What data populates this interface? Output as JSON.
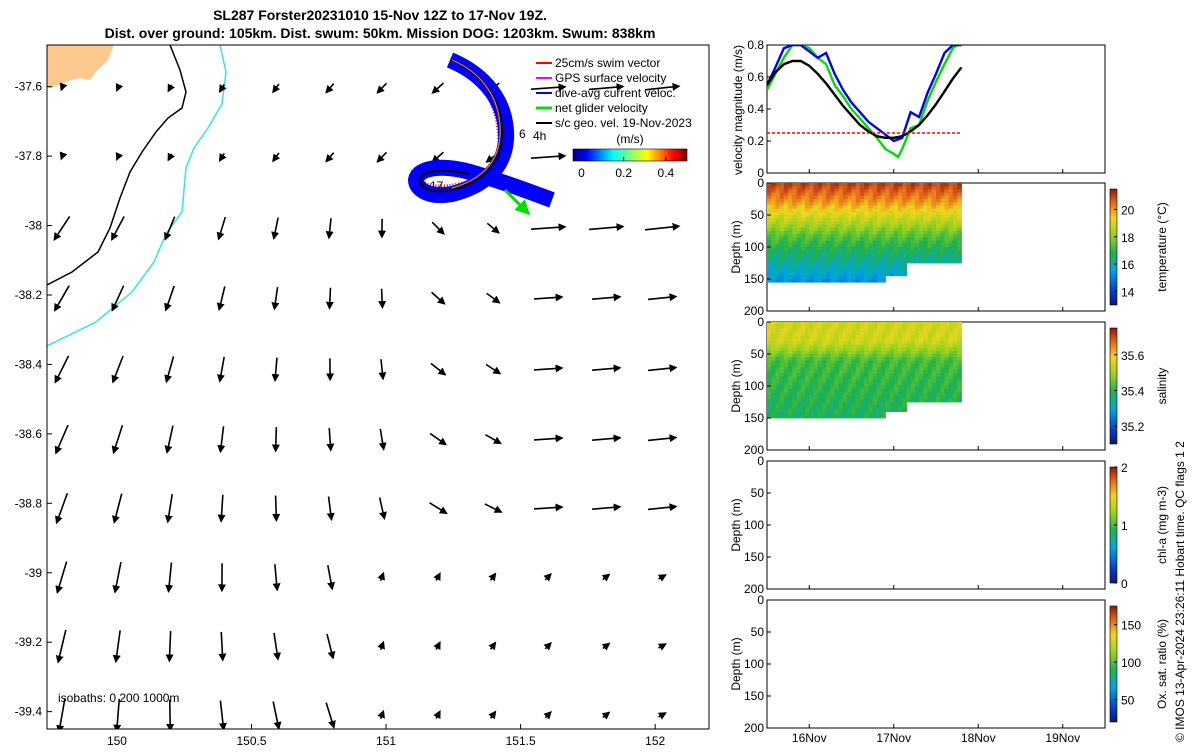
{
  "title": {
    "line1": "SL287 Forster20231010 15-Nov 12Z to 17-Nov 19Z.",
    "line2": "Dist. over ground: 105km. Dist. swum: 50km. Mission DOG: 1203km. Swum: 838km"
  },
  "map": {
    "xticks": [
      "150",
      "150.5",
      "151",
      "151.5",
      "152"
    ],
    "xtick_values": [
      150,
      150.5,
      151,
      151.5,
      152
    ],
    "yticks": [
      "-37.6",
      "-37.8",
      "-38",
      "-38.2",
      "-38.4",
      "-38.6",
      "-38.8",
      "-39",
      "-39.2",
      "-39.4"
    ],
    "ytick_values": [
      -37.6,
      -37.8,
      -38,
      -38.2,
      -38.4,
      -38.6,
      -38.8,
      -39,
      -39.2,
      -39.4
    ],
    "xlim": [
      149.74,
      152.2
    ],
    "ylim": [
      -39.45,
      -37.48
    ],
    "isobath_text": "isobaths: 0   200  1000m",
    "legend": [
      {
        "label": "25cm/s swim vector",
        "color": "#ff0000"
      },
      {
        "label": "GPS surface velocity",
        "color": "#ff00ff"
      },
      {
        "label": "dive-avg current veloc.",
        "color": "#0000ff"
      },
      {
        "label": "net glider velocity",
        "color": "#00dd00"
      },
      {
        "label": "s/c geo. vel. 19-Nov-2023",
        "color": "#000000"
      }
    ],
    "colorbar": {
      "title": "(m/s)",
      "ticks": [
        "0",
        "0.2",
        "0.4"
      ],
      "tick_values": [
        0,
        0.2,
        0.4
      ],
      "range": [
        -0.04,
        0.5
      ]
    },
    "track_labels": [
      "6",
      "4h",
      "17"
    ],
    "land_color": "#fdc98f",
    "isobath_colors": {
      "200m": "#000000",
      "1000m": "#33e5e5"
    }
  },
  "chart_data": [
    {
      "type": "line",
      "title": "",
      "xlabel": "",
      "ylabel": "velocity magnitude (m/s)",
      "ylim": [
        0,
        0.8
      ],
      "yticks": [
        "0",
        "0.2",
        "0.4",
        "0.6",
        "0.8"
      ],
      "x_day_range": [
        15.5,
        19.5
      ],
      "series": [
        {
          "color": "#00dd00",
          "x": [
            15.5,
            15.6,
            15.7,
            15.8,
            15.9,
            16.0,
            16.1,
            16.2,
            16.3,
            16.4,
            16.5,
            16.6,
            16.7,
            16.8,
            16.9,
            17.0,
            17.05,
            17.1,
            17.2,
            17.3,
            17.4,
            17.5,
            17.6,
            17.7,
            17.75,
            17.8
          ],
          "y": [
            0.52,
            0.62,
            0.72,
            0.8,
            0.8,
            0.78,
            0.72,
            0.68,
            0.55,
            0.48,
            0.4,
            0.34,
            0.28,
            0.22,
            0.15,
            0.12,
            0.1,
            0.15,
            0.28,
            0.3,
            0.45,
            0.57,
            0.68,
            0.78,
            0.8,
            0.8
          ]
        },
        {
          "color": "#0000ff",
          "x": [
            15.5,
            15.6,
            15.7,
            15.8,
            15.9,
            16.0,
            16.1,
            16.2,
            16.3,
            16.4,
            16.5,
            16.6,
            16.7,
            16.8,
            16.9,
            17.0,
            17.1,
            17.2,
            17.3,
            17.4,
            17.5,
            17.6,
            17.7,
            17.75,
            17.8
          ],
          "y": [
            0.55,
            0.66,
            0.78,
            0.8,
            0.8,
            0.76,
            0.72,
            0.75,
            0.62,
            0.52,
            0.44,
            0.38,
            0.32,
            0.28,
            0.24,
            0.2,
            0.22,
            0.38,
            0.35,
            0.5,
            0.62,
            0.75,
            0.8,
            0.8,
            0.8
          ]
        },
        {
          "color": "#000000",
          "x": [
            15.5,
            15.6,
            15.7,
            15.8,
            15.9,
            16.0,
            16.1,
            16.2,
            16.3,
            16.4,
            16.5,
            16.6,
            16.7,
            16.8,
            16.9,
            17.0,
            17.1,
            17.2,
            17.3,
            17.4,
            17.5,
            17.6,
            17.7,
            17.8
          ],
          "y": [
            0.55,
            0.63,
            0.68,
            0.7,
            0.7,
            0.67,
            0.62,
            0.56,
            0.49,
            0.42,
            0.36,
            0.3,
            0.26,
            0.23,
            0.22,
            0.22,
            0.23,
            0.26,
            0.3,
            0.36,
            0.43,
            0.51,
            0.59,
            0.66
          ]
        },
        {
          "color": "#ff0000",
          "x": [
            15.5,
            17.8
          ],
          "y": [
            0.25,
            0.25
          ]
        }
      ]
    },
    {
      "type": "heatmap",
      "xlabel": "",
      "ylabel": "Depth (m)",
      "colorbar_label": "temperature (°C)",
      "clim": [
        13,
        21.5
      ],
      "colorbar_ticks": [
        "14",
        "16",
        "18",
        "20"
      ],
      "colorbar_tick_values": [
        14,
        16,
        18,
        20
      ],
      "ylim": [
        0,
        200
      ],
      "yticks": [
        "0",
        "50",
        "100",
        "150",
        "200"
      ],
      "data_days": [
        15.5,
        17.8
      ],
      "max_depth_m": [
        155,
        155,
        155,
        155,
        155,
        155,
        145,
        125,
        125,
        125
      ],
      "profile": [
        [
          0,
          21
        ],
        [
          30,
          20
        ],
        [
          60,
          18.5
        ],
        [
          80,
          17.5
        ],
        [
          100,
          16.8
        ],
        [
          130,
          16
        ],
        [
          155,
          15.2
        ]
      ]
    },
    {
      "type": "heatmap",
      "xlabel": "",
      "ylabel": "Depth (m)",
      "colorbar_label": "salinity",
      "clim": [
        35.1,
        35.75
      ],
      "colorbar_ticks": [
        "35.2",
        "35.4",
        "35.6"
      ],
      "colorbar_tick_values": [
        35.2,
        35.4,
        35.6
      ],
      "ylim": [
        0,
        200
      ],
      "yticks": [
        "0",
        "50",
        "100",
        "150",
        "200"
      ],
      "data_days": [
        15.5,
        17.8
      ],
      "max_depth_m": [
        150,
        150,
        150,
        150,
        150,
        150,
        140,
        125,
        125,
        125
      ],
      "profile": [
        [
          0,
          35.55
        ],
        [
          30,
          35.55
        ],
        [
          60,
          35.42
        ],
        [
          100,
          35.4
        ],
        [
          150,
          35.38
        ]
      ]
    },
    {
      "type": "heatmap",
      "xlabel": "",
      "ylabel": "Depth (m)",
      "colorbar_label": "chl-a (mg m-3)",
      "clim": [
        0,
        2
      ],
      "colorbar_ticks": [
        "0",
        "1",
        "2"
      ],
      "colorbar_tick_values": [
        0,
        1,
        2
      ],
      "ylim": [
        0,
        200
      ],
      "yticks": [
        "0",
        "50",
        "100",
        "150",
        "200"
      ]
    },
    {
      "type": "heatmap",
      "xlabel": "",
      "ylabel": "Depth (m)",
      "colorbar_label": "Ox. sat. ratio (%)",
      "clim": [
        20,
        175
      ],
      "colorbar_ticks": [
        "50",
        "100",
        "150"
      ],
      "colorbar_tick_values": [
        50,
        100,
        150
      ],
      "ylim": [
        0,
        200
      ],
      "yticks": [
        "0",
        "50",
        "100",
        "150",
        "200"
      ],
      "xticks": [
        "16Nov",
        "17Nov",
        "18Nov",
        "19Nov"
      ],
      "xtick_values": [
        16,
        17,
        18,
        19
      ]
    }
  ],
  "footer": "© IMOS 13-Apr-2024 23:26:11 Hobart time. QC flags 1  2"
}
